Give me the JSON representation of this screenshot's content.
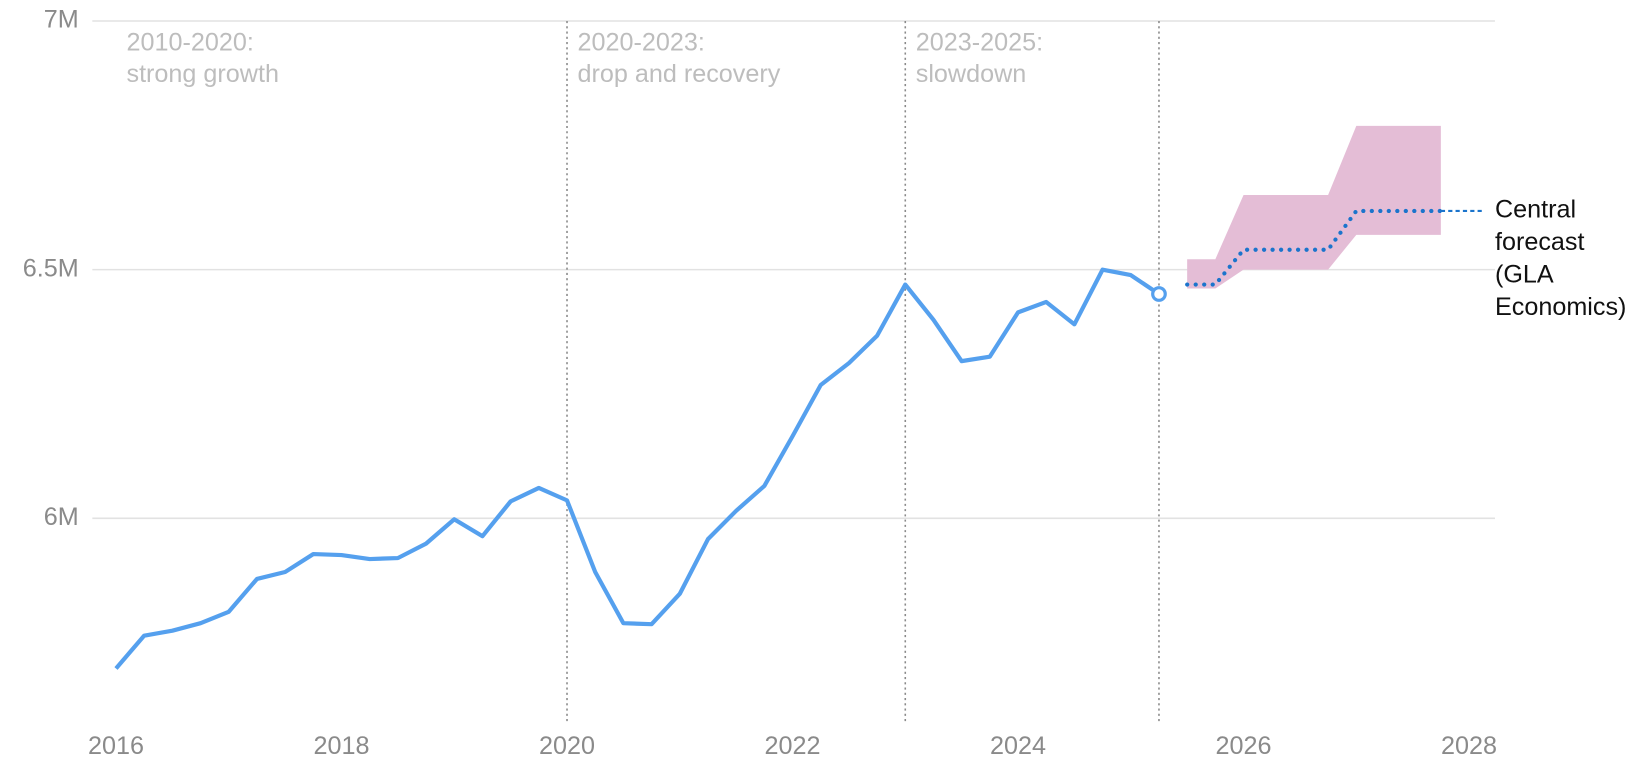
{
  "chart_data": {
    "type": "line",
    "xlim": [
      2015.79,
      2028.23
    ],
    "ylim": [
      5590000,
      7000000
    ],
    "xticks": [
      2016,
      2018,
      2020,
      2022,
      2024,
      2026,
      2028
    ],
    "yticks": [
      {
        "value": 6000000,
        "label": "6M"
      },
      {
        "value": 6500000,
        "label": "6.5M"
      },
      {
        "value": 7000000,
        "label": "7M"
      }
    ],
    "grid": true,
    "vlines": [
      2020,
      2023,
      2025.25
    ],
    "annotations": [
      {
        "lines": [
          "2010-2020:",
          "strong growth"
        ]
      },
      {
        "lines": [
          "2020-2023:",
          "drop and recovery"
        ]
      },
      {
        "lines": [
          "2023-2025:",
          "slowdown"
        ]
      }
    ],
    "series": [
      {
        "color": "#55a0ee",
        "x": [
          2016,
          2016.25,
          2016.5,
          2016.75,
          2017,
          2017.25,
          2017.5,
          2017.75,
          2018,
          2018.25,
          2018.5,
          2018.75,
          2019,
          2019.25,
          2019.5,
          2019.75,
          2020,
          2020.25,
          2020.5,
          2020.75,
          2021,
          2021.25,
          2021.5,
          2021.75,
          2022,
          2022.25,
          2022.5,
          2022.75,
          2023,
          2023.25,
          2023.5,
          2023.75,
          2024,
          2024.25,
          2024.5,
          2024.75,
          2025,
          2025.25
        ],
        "values": [
          5698000,
          5764000,
          5774000,
          5789000,
          5812000,
          5878000,
          5892000,
          5928000,
          5926000,
          5918000,
          5920000,
          5949000,
          5998000,
          5964000,
          6034000,
          6061000,
          6036000,
          5892000,
          5789000,
          5787000,
          5848000,
          5958000,
          6015000,
          6065000,
          6165000,
          6268000,
          6312000,
          6367000,
          6470000,
          6399000,
          6316000,
          6325000,
          6414000,
          6435000,
          6390000,
          6500000,
          6489000,
          6451000
        ]
      },
      {
        "name": [
          "Central",
          "forecast",
          "(GLA",
          "Economics)"
        ],
        "color": "#1b74cc",
        "band_color": "#e4bdd6",
        "x": [
          2025.5,
          2025.75,
          2026,
          2026.75,
          2027,
          2027.75
        ],
        "values": [
          6470000,
          6470000,
          6540000,
          6540000,
          6618000,
          6618000
        ],
        "band_low": [
          6462000,
          6462000,
          6500000,
          6500000,
          6570000,
          6570000
        ],
        "band_high": [
          6521000,
          6521000,
          6650000,
          6650000,
          6789000,
          6789000
        ]
      }
    ]
  }
}
